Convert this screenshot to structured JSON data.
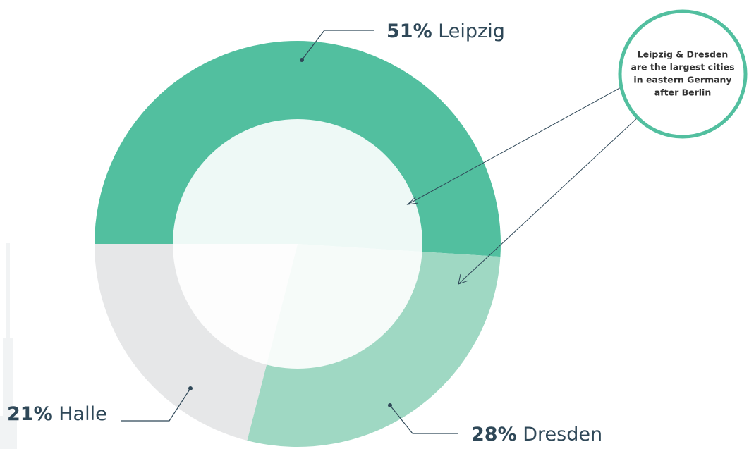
{
  "chart_data": {
    "type": "donut",
    "categories": [
      "Leipzig",
      "Dresden",
      "Halle"
    ],
    "values": [
      51,
      28,
      21
    ],
    "value_labels": [
      "51%",
      "28%",
      "21%"
    ],
    "colors": [
      "#52bf9f",
      "#9fd8c3",
      "#e6e7e8"
    ],
    "annotation": [
      "Leipzig & Dresden",
      "are the largest cities",
      "in eastern Germany",
      "after Berlin"
    ]
  }
}
